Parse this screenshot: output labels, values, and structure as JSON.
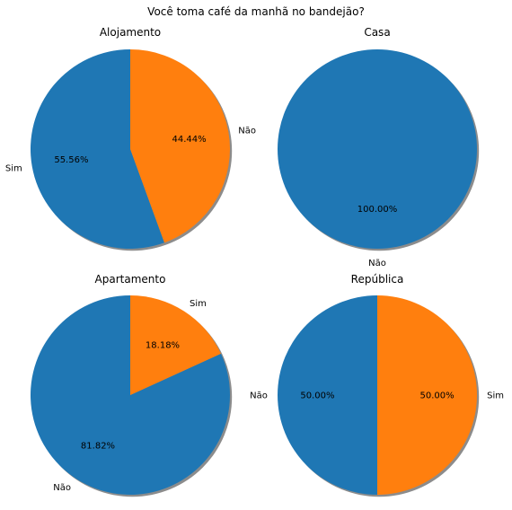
{
  "title": "Você toma café da manhã no bandejão?",
  "colors": {
    "blue": "#1f77b4",
    "orange": "#ff7f0e",
    "shadow": "#7f7f7f"
  },
  "chart_data": [
    {
      "type": "pie",
      "title": "Alojamento",
      "slices": [
        {
          "label": "Sim",
          "value": 55.56,
          "pct_label": "55.56%",
          "color": "#1f77b4"
        },
        {
          "label": "Não",
          "value": 44.44,
          "pct_label": "44.44%",
          "color": "#ff7f0e"
        }
      ],
      "start_angle_deg": 90,
      "shadow": true
    },
    {
      "type": "pie",
      "title": "Casa",
      "slices": [
        {
          "label": "Não",
          "value": 100.0,
          "pct_label": "100.00%",
          "color": "#1f77b4"
        }
      ],
      "start_angle_deg": 90,
      "shadow": true
    },
    {
      "type": "pie",
      "title": "Apartamento",
      "slices": [
        {
          "label": "Não",
          "value": 81.82,
          "pct_label": "81.82%",
          "color": "#1f77b4"
        },
        {
          "label": "Sim",
          "value": 18.18,
          "pct_label": "18.18%",
          "color": "#ff7f0e"
        }
      ],
      "start_angle_deg": 90,
      "shadow": true
    },
    {
      "type": "pie",
      "title": "República",
      "slices": [
        {
          "label": "Não",
          "value": 50.0,
          "pct_label": "50.00%",
          "color": "#1f77b4"
        },
        {
          "label": "Sim",
          "value": 50.0,
          "pct_label": "50.00%",
          "color": "#ff7f0e"
        }
      ],
      "start_angle_deg": 90,
      "shadow": true
    }
  ]
}
